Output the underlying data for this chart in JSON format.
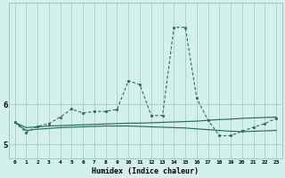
{
  "x": [
    0,
    1,
    2,
    3,
    4,
    5,
    6,
    7,
    8,
    9,
    10,
    11,
    12,
    13,
    14,
    15,
    16,
    17,
    18,
    19,
    20,
    21,
    22,
    23
  ],
  "y_main": [
    5.55,
    5.3,
    5.45,
    5.52,
    5.68,
    5.88,
    5.78,
    5.82,
    5.82,
    5.87,
    6.58,
    6.48,
    5.72,
    5.72,
    7.9,
    7.9,
    6.15,
    5.6,
    5.22,
    5.22,
    5.33,
    5.43,
    5.52,
    5.65
  ],
  "y_line1": [
    5.55,
    5.42,
    5.44,
    5.46,
    5.47,
    5.48,
    5.49,
    5.5,
    5.51,
    5.52,
    5.53,
    5.53,
    5.54,
    5.55,
    5.56,
    5.57,
    5.58,
    5.6,
    5.62,
    5.63,
    5.65,
    5.66,
    5.67,
    5.68
  ],
  "y_line2": [
    5.55,
    5.35,
    5.38,
    5.4,
    5.42,
    5.43,
    5.44,
    5.45,
    5.46,
    5.46,
    5.46,
    5.45,
    5.44,
    5.43,
    5.42,
    5.41,
    5.39,
    5.37,
    5.35,
    5.33,
    5.32,
    5.33,
    5.34,
    5.35
  ],
  "line_color": "#2a6b5f",
  "bg_color": "#d4f0eb",
  "grid_color": "#9dc8bf",
  "xlabel": "Humidex (Indice chaleur)",
  "ytick_labels": [
    "5",
    "6"
  ],
  "ytick_values": [
    5.0,
    6.0
  ],
  "xlim": [
    -0.5,
    23.5
  ],
  "ylim": [
    4.65,
    8.5
  ]
}
